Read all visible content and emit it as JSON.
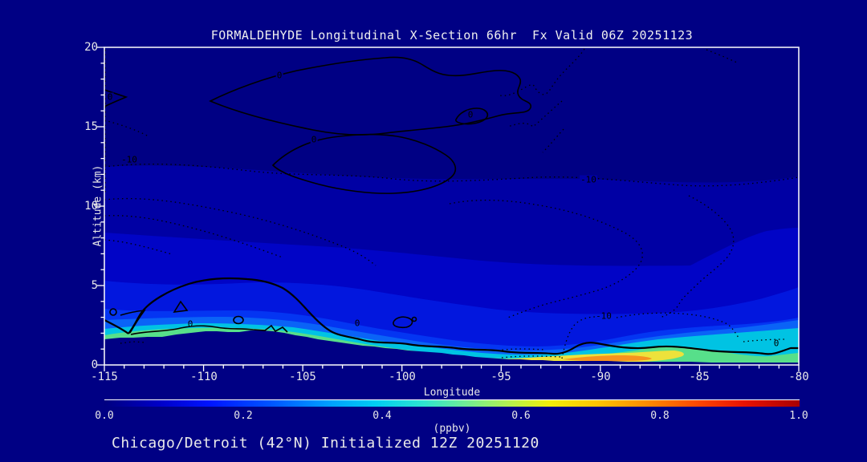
{
  "header": {
    "title": "FORMALDEHYDE Longitudinal X-Section 66hr  Fx Valid 06Z 20251123"
  },
  "footer": {
    "caption": "Chicago/Detroit (42°N) Initialized 12Z 20251120"
  },
  "chart_data": {
    "type": "heatmap",
    "title": "FORMALDEHYDE Longitudinal X-Section 66hr  Fx Valid 06Z 20251123",
    "xlabel": "Longitude",
    "ylabel": "Altitude (km)",
    "xlim": [
      -115,
      -80
    ],
    "ylim": [
      0,
      20
    ],
    "x_tick_labels": [
      "-115",
      "-110",
      "-105",
      "-100",
      "-95",
      "-90",
      "-85",
      "-80"
    ],
    "y_tick_labels": [
      "20",
      "15",
      "10",
      "5",
      "0"
    ],
    "colorbar": {
      "units_label": "(ppbv)",
      "tick_labels": [
        "0.0",
        "0.2",
        "0.4",
        "0.6",
        "0.8",
        "1.0"
      ],
      "min": 0.0,
      "max": 1.0
    },
    "field": "formaldehyde mixing ratio (ppbv), longitude-altitude cross section at 42N",
    "terrain_height_km": {
      "-115": 1.6,
      "-110": 2.0,
      "-105": 1.7,
      "-100": 1.2,
      "-95": 0.6,
      "-90": 0.3,
      "-85": 0.2,
      "-80": 0.15
    },
    "surface_concentration_ppbv": {
      "-115": 0.45,
      "-110": 0.5,
      "-105": 0.4,
      "-100": 0.35,
      "-95": 0.5,
      "-90": 0.85,
      "-85": 0.4,
      "-80": 0.45
    },
    "overlay_contours": {
      "solid_label": "0",
      "dotted_label": "-10"
    },
    "palette": {
      "background": "#000084",
      "band_low": "#0000a4",
      "band_mid": "#0104c6",
      "band_high": "#0217de",
      "band_bright": "#0a63f7",
      "cyan": "#00c3e3",
      "green": "#57df8a",
      "yellow": "#ede23b",
      "orange": "#f6931f",
      "max_red": "#a80000"
    }
  }
}
